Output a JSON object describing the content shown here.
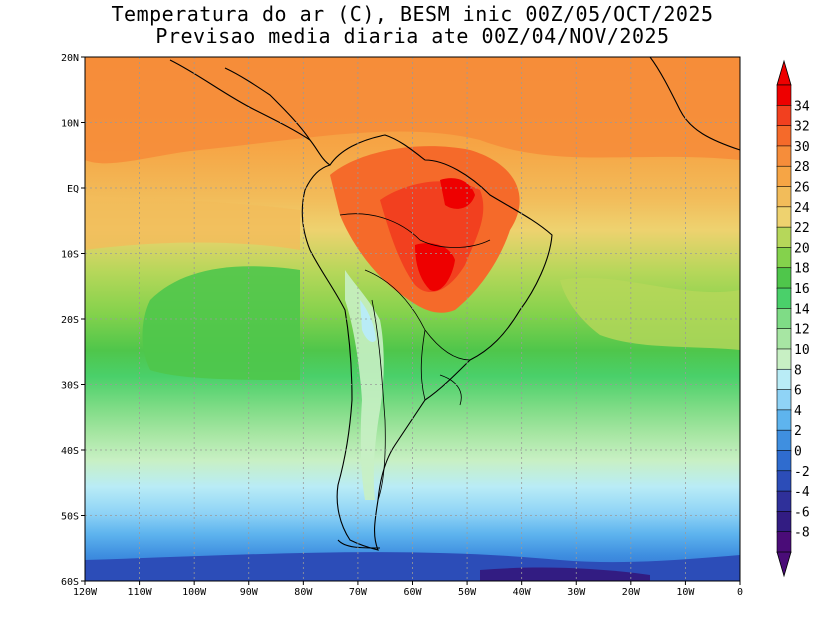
{
  "title": {
    "line1": "Temperatura do ar (C), BESM inic 00Z/05/OCT/2025",
    "line2": "Previsao media diaria ate 00Z/04/NOV/2025"
  },
  "map": {
    "lon_range": [
      -120,
      0
    ],
    "lat_range": [
      -60,
      20
    ],
    "x_ticks": [
      "120W",
      "110W",
      "100W",
      "90W",
      "80W",
      "70W",
      "60W",
      "50W",
      "40W",
      "30W",
      "20W",
      "10W",
      "0"
    ],
    "y_ticks": [
      "20N",
      "10N",
      "EQ",
      "10S",
      "20S",
      "30S",
      "40S",
      "50S",
      "60S"
    ]
  },
  "colorbar": {
    "labels": [
      "34",
      "32",
      "30",
      "28",
      "26",
      "24",
      "22",
      "20",
      "18",
      "16",
      "14",
      "12",
      "10",
      "8",
      "6",
      "4",
      "2",
      "0",
      "-2",
      "-4",
      "-6",
      "-8"
    ],
    "colors": [
      "#ee0000",
      "#f2401f",
      "#f56a2a",
      "#f68d3a",
      "#f6a545",
      "#f2bc5a",
      "#eed26f",
      "#b6d75a",
      "#84d24c",
      "#4fc64b",
      "#4ad06a",
      "#7fdc86",
      "#a7e6a3",
      "#c8f0c4",
      "#b9ecf6",
      "#8fd3f6",
      "#5eb4ee",
      "#3f8fe0",
      "#2f6ccf",
      "#2c4db8",
      "#2f309a",
      "#321c82",
      "#4a0c78"
    ]
  }
}
